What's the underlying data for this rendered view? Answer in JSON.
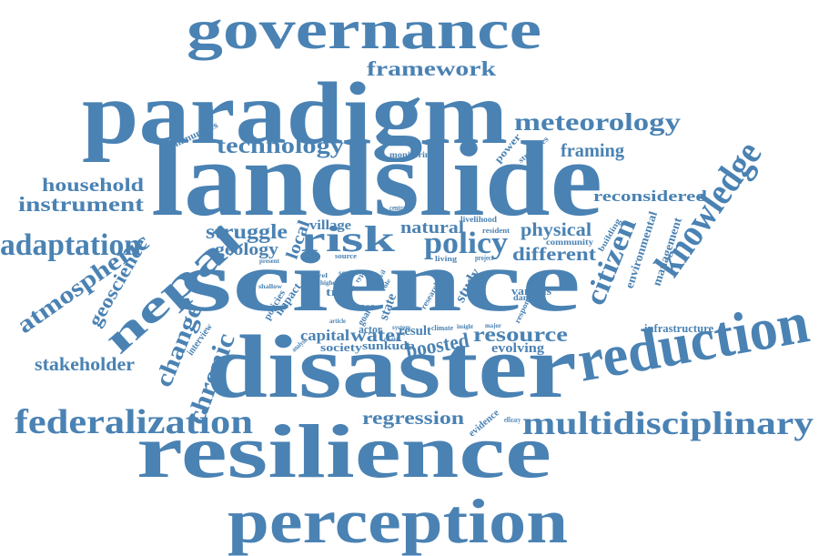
{
  "color": "#4a82b3",
  "words": [
    {
      "id": "governance",
      "text": "governance"
    },
    {
      "id": "framework",
      "text": "framework"
    },
    {
      "id": "paradigm",
      "text": "paradigm"
    },
    {
      "id": "meteorology",
      "text": "meteorology"
    },
    {
      "id": "communities",
      "text": "communities"
    },
    {
      "id": "technology",
      "text": "technology"
    },
    {
      "id": "monitoring",
      "text": "monitoring"
    },
    {
      "id": "power",
      "text": "power"
    },
    {
      "id": "strategies",
      "text": "strategies"
    },
    {
      "id": "framing",
      "text": "framing"
    },
    {
      "id": "landslide",
      "text": "landslide"
    },
    {
      "id": "knowledge",
      "text": "knowledge"
    },
    {
      "id": "household",
      "text": "household"
    },
    {
      "id": "instrument",
      "text": "instrument"
    },
    {
      "id": "reconsidered",
      "text": "reconsidered"
    },
    {
      "id": "adaptation",
      "text": "adaptation"
    },
    {
      "id": "nepal",
      "text": "nepal"
    },
    {
      "id": "struggle",
      "text": "struggle"
    },
    {
      "id": "local",
      "text": "local"
    },
    {
      "id": "village",
      "text": "village"
    },
    {
      "id": "risk",
      "text": "risk"
    },
    {
      "id": "central",
      "text": "central"
    },
    {
      "id": "natural",
      "text": "natural"
    },
    {
      "id": "livelihood",
      "text": "livelihood"
    },
    {
      "id": "policy",
      "text": "policy"
    },
    {
      "id": "physical",
      "text": "physical"
    },
    {
      "id": "building",
      "text": "building"
    },
    {
      "id": "geology",
      "text": "geology"
    },
    {
      "id": "resident",
      "text": "resident"
    },
    {
      "id": "community",
      "text": "community"
    },
    {
      "id": "different",
      "text": "different"
    },
    {
      "id": "citizen",
      "text": "citizen"
    },
    {
      "id": "atmospheric",
      "text": "atmospheric"
    },
    {
      "id": "geoscience",
      "text": "geoscience"
    },
    {
      "id": "present",
      "text": "present"
    },
    {
      "id": "source",
      "text": "source"
    },
    {
      "id": "living",
      "text": "living"
    },
    {
      "id": "project",
      "text": "project"
    },
    {
      "id": "environmental",
      "text": "environmental"
    },
    {
      "id": "management",
      "text": "management"
    },
    {
      "id": "science",
      "text": "science"
    },
    {
      "id": "level",
      "text": "level"
    },
    {
      "id": "social",
      "text": "social"
    },
    {
      "id": "higher",
      "text": "higher"
    },
    {
      "id": "tree",
      "text": "tree"
    },
    {
      "id": "type",
      "text": "type"
    },
    {
      "id": "civil",
      "text": "civil"
    },
    {
      "id": "role",
      "text": "role"
    },
    {
      "id": "shallow",
      "text": "shallow"
    },
    {
      "id": "impact",
      "text": "impact"
    },
    {
      "id": "policies",
      "text": "policies"
    },
    {
      "id": "practice",
      "text": "practice"
    },
    {
      "id": "case",
      "text": "case"
    },
    {
      "id": "goal",
      "text": "goal"
    },
    {
      "id": "state",
      "text": "state"
    },
    {
      "id": "actor",
      "text": "actor"
    },
    {
      "id": "research",
      "text": "research"
    },
    {
      "id": "study",
      "text": "study"
    },
    {
      "id": "various",
      "text": "various"
    },
    {
      "id": "damage",
      "text": "damage"
    },
    {
      "id": "response",
      "text": "response"
    },
    {
      "id": "change",
      "text": "change"
    },
    {
      "id": "chronic",
      "text": "chronic"
    },
    {
      "id": "article",
      "text": "article"
    },
    {
      "id": "capital",
      "text": "capital"
    },
    {
      "id": "water",
      "text": "water"
    },
    {
      "id": "system",
      "text": "system"
    },
    {
      "id": "relation",
      "text": "relation"
    },
    {
      "id": "result",
      "text": "result"
    },
    {
      "id": "climate",
      "text": "climate"
    },
    {
      "id": "insight",
      "text": "insight"
    },
    {
      "id": "major",
      "text": "major"
    },
    {
      "id": "resource",
      "text": "resource"
    },
    {
      "id": "infrastructure",
      "text": "infrastructure"
    },
    {
      "id": "interview",
      "text": "interview"
    },
    {
      "id": "analysis",
      "text": "analysis"
    },
    {
      "id": "society",
      "text": "society"
    },
    {
      "id": "sunkuda",
      "text": "sunkuda"
    },
    {
      "id": "boosted",
      "text": "boosted"
    },
    {
      "id": "evolving",
      "text": "evolving"
    },
    {
      "id": "reduction",
      "text": "reduction"
    },
    {
      "id": "stakeholder",
      "text": "stakeholder"
    },
    {
      "id": "disaster",
      "text": "disaster"
    },
    {
      "id": "federalization",
      "text": "federalization"
    },
    {
      "id": "regression",
      "text": "regression"
    },
    {
      "id": "evidence",
      "text": "evidence"
    },
    {
      "id": "efficacy",
      "text": "efficacy"
    },
    {
      "id": "multidisciplinary",
      "text": "multidisciplinary"
    },
    {
      "id": "resilience",
      "text": "resilience"
    },
    {
      "id": "perception",
      "text": "perception"
    }
  ]
}
